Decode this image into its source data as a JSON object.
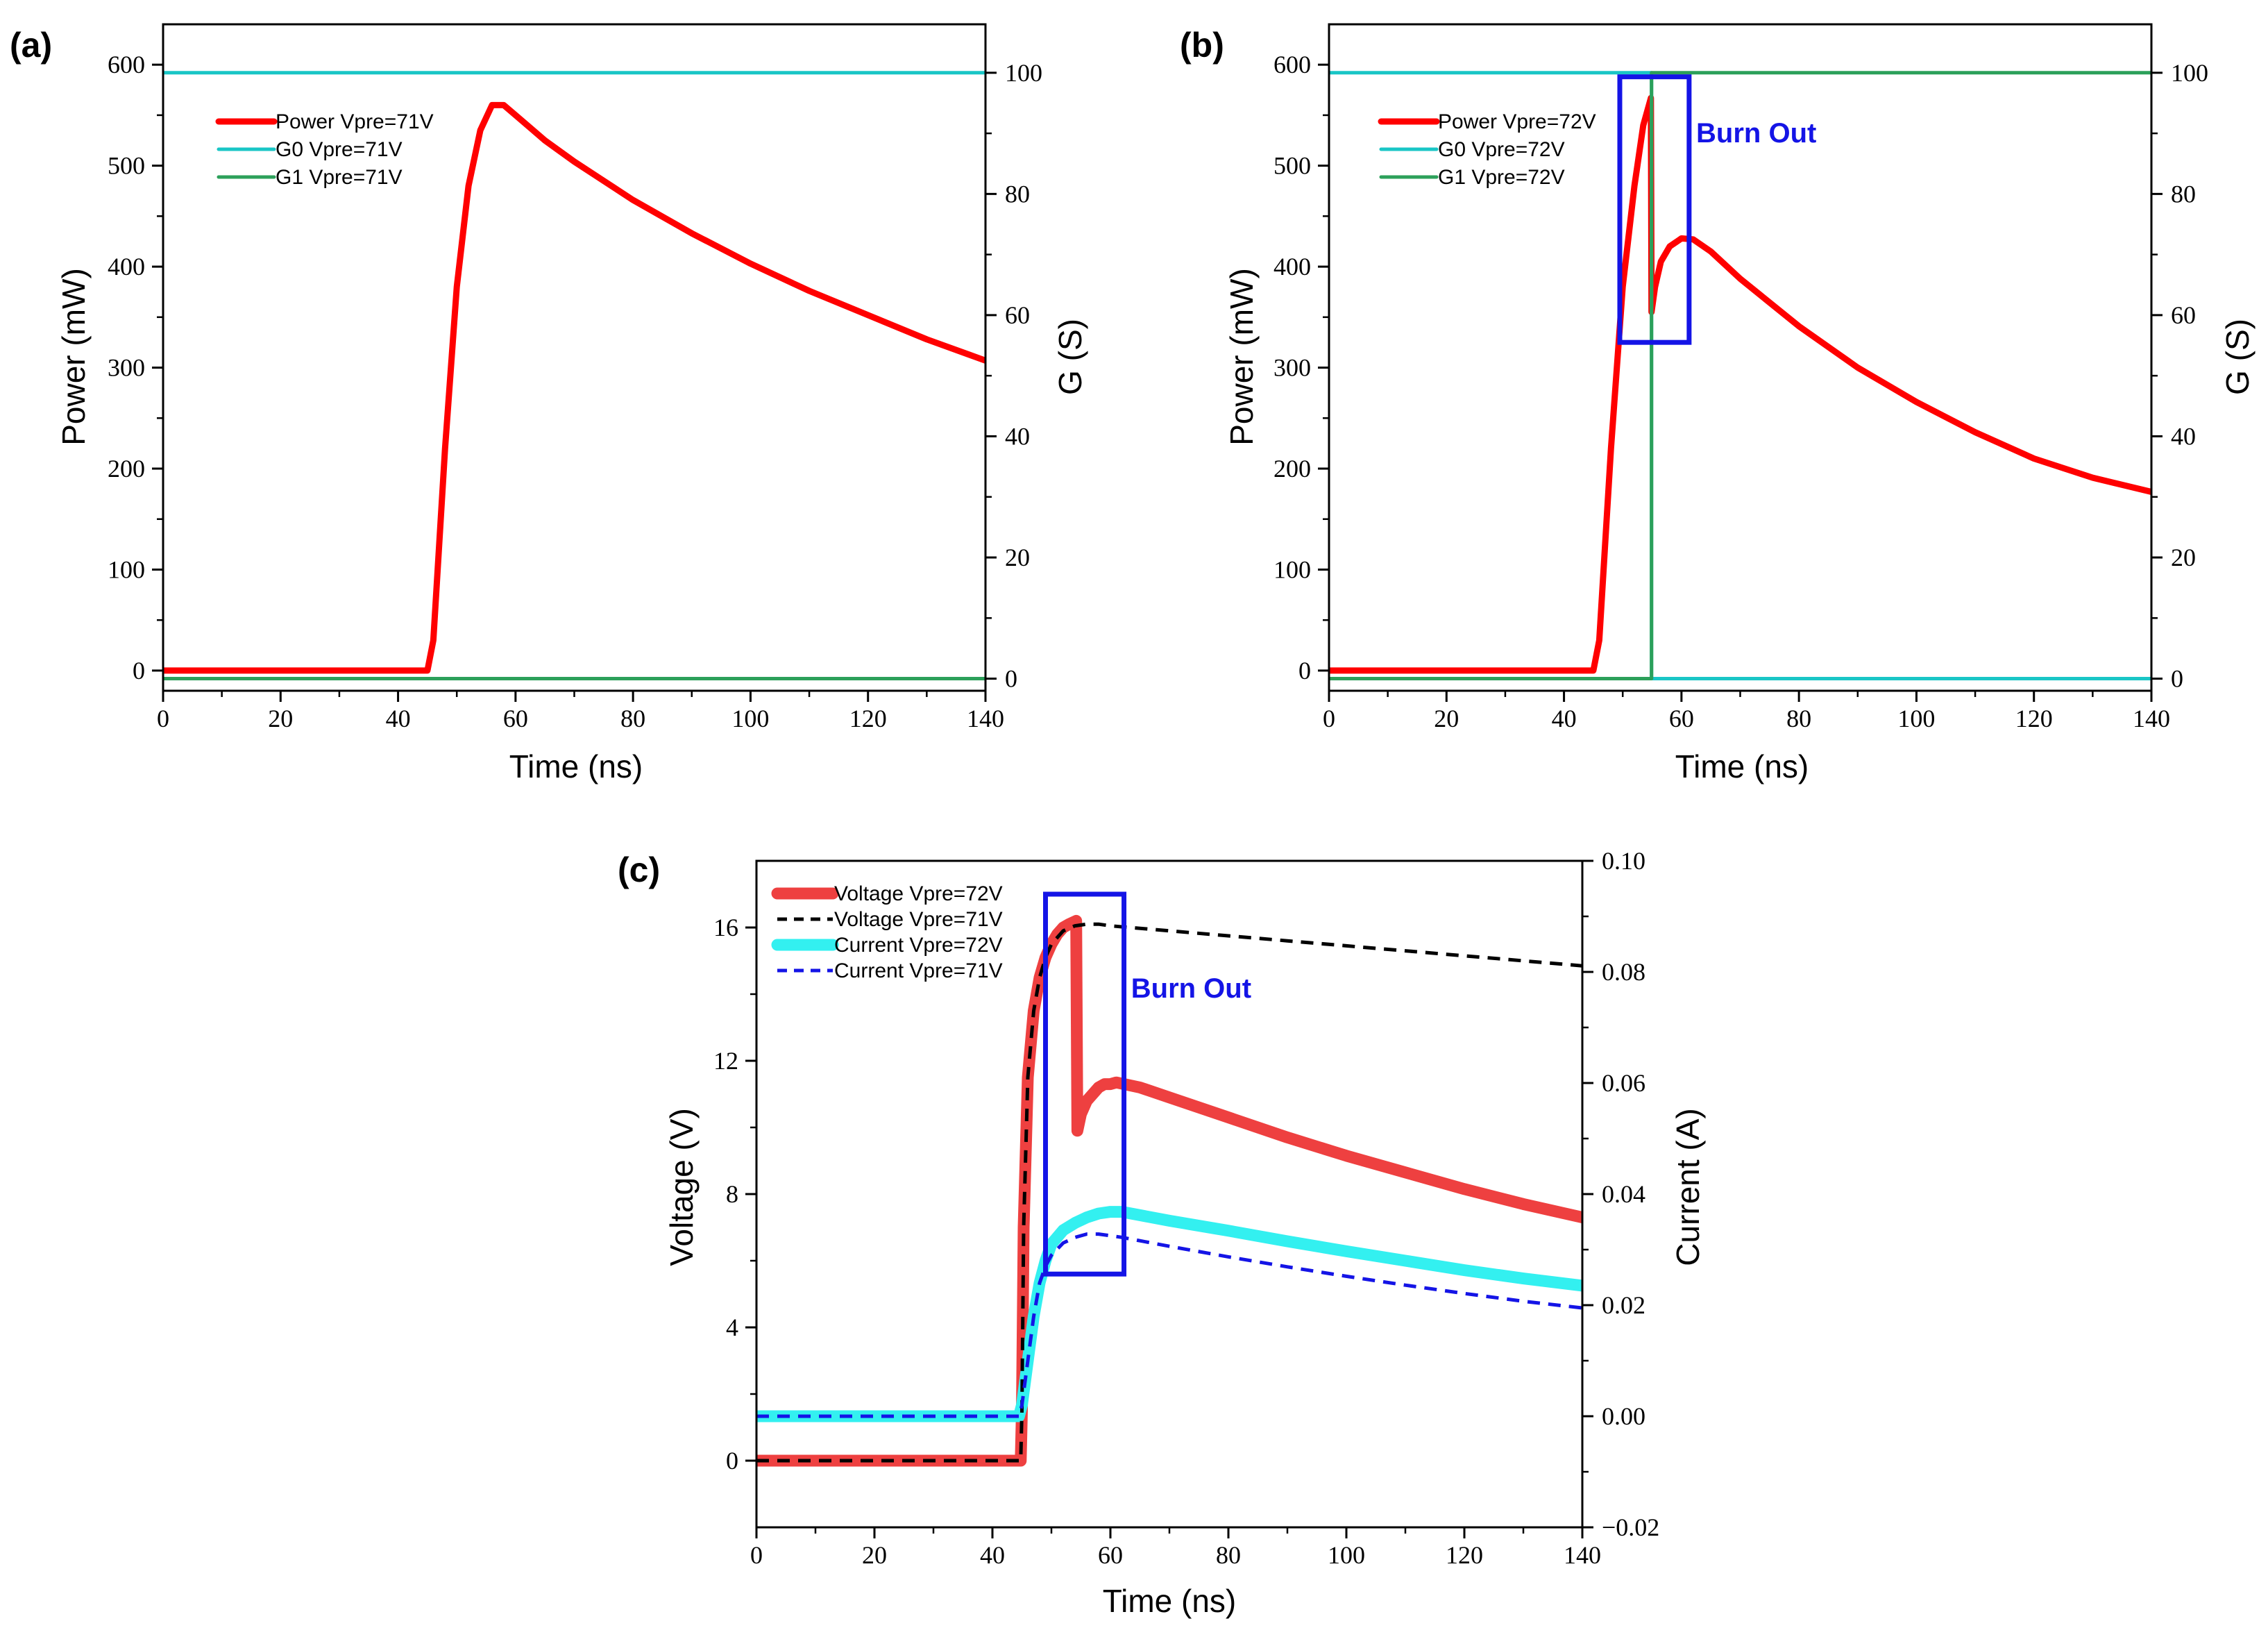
{
  "chart_data": [
    {
      "panel": "(a)",
      "type": "line",
      "xlabel": "Time (ns)",
      "ylabel": "Power (mW)",
      "y2label": "G (S)",
      "xlim": [
        0,
        140
      ],
      "ylim": [
        -20,
        640
      ],
      "y2lim": [
        -2,
        108
      ],
      "xticks": [
        0,
        20,
        40,
        60,
        80,
        100,
        120,
        140
      ],
      "yticks": [
        0,
        100,
        200,
        300,
        400,
        500,
        600
      ],
      "y2ticks": [
        0,
        20,
        40,
        60,
        80,
        100
      ],
      "legend_position": "top-left",
      "series": [
        {
          "name": "Power Vpre=71V",
          "axis": "left",
          "color": "#ff0000",
          "style": "solid",
          "width": "thick",
          "x": [
            0,
            44.5,
            45,
            46,
            48,
            50,
            52,
            54,
            56,
            58,
            60,
            65,
            70,
            80,
            90,
            100,
            110,
            120,
            130,
            140
          ],
          "y": [
            0,
            0,
            0,
            30,
            220,
            380,
            480,
            535,
            560,
            560,
            550,
            525,
            504,
            466,
            433,
            403,
            376,
            352,
            328,
            307
          ]
        },
        {
          "name": "G0 Vpre=71V",
          "axis": "right",
          "color": "#19c6c6",
          "style": "solid",
          "width": "thin",
          "x": [
            0,
            140
          ],
          "y": [
            100,
            100
          ]
        },
        {
          "name": "G1 Vpre=71V",
          "axis": "right",
          "color": "#2ca05a",
          "style": "solid",
          "width": "thin",
          "x": [
            0,
            140
          ],
          "y": [
            0,
            0
          ]
        }
      ],
      "annotations": []
    },
    {
      "panel": "(b)",
      "type": "line",
      "xlabel": "Time (ns)",
      "ylabel": "Power (mW)",
      "y2label": "G (S)",
      "xlim": [
        0,
        140
      ],
      "ylim": [
        -20,
        640
      ],
      "y2lim": [
        -2,
        108
      ],
      "xticks": [
        0,
        20,
        40,
        60,
        80,
        100,
        120,
        140
      ],
      "yticks": [
        0,
        100,
        200,
        300,
        400,
        500,
        600
      ],
      "y2ticks": [
        0,
        20,
        40,
        60,
        80,
        100
      ],
      "legend_position": "top-left",
      "series": [
        {
          "name": "Power Vpre=72V",
          "axis": "left",
          "color": "#ff0000",
          "style": "solid",
          "width": "thick",
          "x": [
            0,
            44.5,
            45,
            46,
            48,
            50,
            52,
            53.5,
            54.8,
            54.9,
            55.5,
            56.5,
            58,
            60,
            62,
            65,
            70,
            80,
            90,
            100,
            110,
            120,
            130,
            140
          ],
          "y": [
            0,
            0,
            0,
            30,
            220,
            380,
            480,
            540,
            567,
            355,
            380,
            405,
            420,
            428,
            427,
            415,
            388,
            341,
            300,
            266,
            236,
            210,
            191,
            177
          ]
        },
        {
          "name": "G0 Vpre=72V",
          "axis": "right",
          "color": "#19c6c6",
          "style": "solid",
          "width": "thin",
          "x": [
            0,
            54.9,
            54.9,
            140
          ],
          "y": [
            100,
            100,
            0,
            0
          ]
        },
        {
          "name": "G1 Vpre=72V",
          "axis": "right",
          "color": "#2ca05a",
          "style": "solid",
          "width": "thin",
          "x": [
            0,
            54.9,
            54.9,
            140
          ],
          "y": [
            0,
            0,
            100,
            100
          ]
        }
      ],
      "annotations": [
        {
          "text": "Burn Out",
          "color": "#1414e6",
          "box_x": [
            49.5,
            61.3
          ],
          "box_y": [
            325,
            588
          ],
          "text_x": 62.5,
          "text_y": 523
        }
      ]
    },
    {
      "panel": "(c)",
      "type": "line",
      "xlabel": "Time (ns)",
      "ylabel": "Voltage (V)",
      "y2label": "Current (A)",
      "xlim": [
        0,
        140
      ],
      "ylim": [
        -2,
        18
      ],
      "y2lim": [
        -0.02,
        0.1
      ],
      "xticks": [
        0,
        20,
        40,
        60,
        80,
        100,
        120,
        140
      ],
      "yticks": [
        0,
        4,
        8,
        12,
        16
      ],
      "y2ticks": [
        -0.02,
        0.0,
        0.02,
        0.04,
        0.06,
        0.08,
        0.1
      ],
      "y2ticklabels": [
        "−0.02",
        "0.00",
        "0.02",
        "0.04",
        "0.06",
        "0.08",
        "0.10"
      ],
      "legend_position": "top-left",
      "series": [
        {
          "name": "Voltage Vpre=72V",
          "axis": "left",
          "color": "#ee4040",
          "style": "solid",
          "width": "thick",
          "x": [
            0,
            44.8,
            45,
            45.3,
            46,
            47,
            48,
            49,
            50,
            51,
            52,
            53,
            54.2,
            54.4,
            55,
            56,
            57,
            58,
            59,
            60,
            61,
            65,
            70,
            80,
            90,
            100,
            110,
            120,
            130,
            140
          ],
          "y": [
            0,
            0,
            1.5,
            7,
            11.5,
            13.5,
            14.5,
            15.1,
            15.5,
            15.8,
            16.0,
            16.1,
            16.2,
            9.9,
            10.4,
            10.8,
            11.0,
            11.2,
            11.3,
            11.3,
            11.35,
            11.2,
            10.9,
            10.3,
            9.7,
            9.15,
            8.65,
            8.15,
            7.7,
            7.3
          ]
        },
        {
          "name": "Voltage Vpre=71V",
          "axis": "left",
          "color": "#000000",
          "style": "dash",
          "width": "thin",
          "x": [
            0,
            44.8,
            45,
            45.3,
            46,
            47,
            48,
            49,
            50,
            52,
            54,
            56,
            58,
            60,
            70,
            80,
            90,
            100,
            110,
            120,
            130,
            140
          ],
          "y": [
            0,
            0,
            1.5,
            7,
            11.5,
            13.5,
            14.5,
            15.1,
            15.5,
            15.9,
            16.05,
            16.1,
            16.1,
            16.05,
            15.9,
            15.75,
            15.6,
            15.45,
            15.3,
            15.15,
            15.0,
            14.85
          ]
        },
        {
          "name": "Current Vpre=72V",
          "axis": "right",
          "color": "#33f0f0",
          "style": "solid",
          "width": "thick",
          "x": [
            0,
            44.5,
            45,
            46,
            47,
            48,
            49,
            50,
            52,
            54,
            56,
            58,
            60,
            62,
            65,
            70,
            80,
            90,
            100,
            110,
            120,
            130,
            140
          ],
          "y": [
            0,
            0,
            0.002,
            0.01,
            0.018,
            0.024,
            0.028,
            0.031,
            0.0335,
            0.0348,
            0.0358,
            0.0365,
            0.0368,
            0.0368,
            0.0362,
            0.0352,
            0.0334,
            0.0315,
            0.0297,
            0.028,
            0.0263,
            0.0248,
            0.0235
          ]
        },
        {
          "name": "Current Vpre=71V",
          "axis": "right",
          "color": "#1414e6",
          "style": "dash",
          "width": "thin",
          "x": [
            0,
            44.5,
            45,
            46,
            47,
            48,
            49,
            50,
            52,
            54,
            56,
            58,
            60,
            62,
            65,
            70,
            80,
            90,
            100,
            110,
            120,
            130,
            140
          ],
          "y": [
            0,
            0,
            0.002,
            0.01,
            0.018,
            0.024,
            0.027,
            0.029,
            0.0312,
            0.0322,
            0.0328,
            0.0328,
            0.0325,
            0.0322,
            0.0316,
            0.0306,
            0.0287,
            0.0269,
            0.0252,
            0.0236,
            0.0221,
            0.0207,
            0.0195
          ]
        }
      ],
      "annotations": [
        {
          "text": "Burn Out",
          "color": "#1414e6",
          "box_x": [
            49,
            62.3
          ],
          "box_y": [
            5.6,
            17.0
          ],
          "text_x": 63.5,
          "text_y": 13.9
        }
      ]
    }
  ]
}
